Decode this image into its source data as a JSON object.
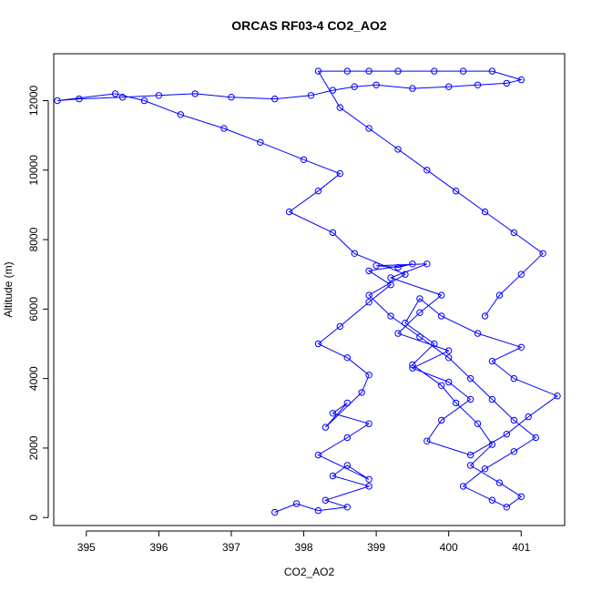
{
  "chart_data": {
    "type": "scatter",
    "title": "ORCAS RF03-4 CO2_AO2",
    "xlabel": "CO2_AO2",
    "ylabel": "Altitude (m)",
    "xlim": [
      394.55,
      401.6
    ],
    "ylim": [
      -230,
      13350
    ],
    "x_ticks": [
      395,
      396,
      397,
      398,
      399,
      400,
      401
    ],
    "y_ticks": [
      0,
      2000,
      4000,
      6000,
      8000,
      10000,
      12000
    ],
    "grid": false,
    "legend": "none",
    "connect_points": true,
    "marker": "open-circle",
    "color": "#0000ff",
    "series": [
      {
        "x": [
          397.6,
          397.9,
          398.2,
          398.6,
          398.3,
          398.9,
          398.4,
          398.6,
          398.9,
          398.2,
          398.6,
          398.9,
          398.4,
          398.6,
          398.3,
          398.8,
          398.9,
          398.6,
          398.2,
          398.5,
          398.9,
          399.2,
          398.9,
          399.5,
          399.3,
          399.0,
          399.7,
          399.2,
          399.9,
          399.6,
          399.3,
          400.0,
          399.5,
          400.0,
          400.3,
          399.9,
          399.7,
          400.3,
          400.8,
          401.1,
          401.5,
          400.9,
          400.6,
          401.0,
          400.4,
          399.9,
          399.6,
          399.4,
          399.8,
          399.5,
          399.9,
          400.1,
          400.4,
          400.6,
          400.3,
          400.7,
          401.0,
          400.8,
          400.6,
          400.2,
          400.5,
          400.9,
          401.2,
          400.9,
          400.6,
          400.3,
          400.0,
          399.6,
          399.2,
          398.9,
          399.4,
          398.7,
          398.4,
          397.8,
          398.2,
          398.5,
          398.0,
          397.4,
          396.9,
          396.3,
          395.8,
          395.4,
          394.6,
          394.9,
          395.5,
          396.0,
          396.5,
          397.0,
          397.6,
          398.1,
          398.4,
          398.7,
          399.0,
          399.5,
          400.0,
          400.4,
          400.8,
          401.0,
          400.6,
          400.2,
          399.8,
          399.3,
          398.9,
          398.6,
          398.2,
          398.5,
          398.9,
          399.3,
          399.7,
          400.1,
          400.5,
          400.9,
          401.3,
          401.0,
          400.7,
          400.5
        ],
        "y": [
          150,
          400,
          200,
          300,
          500,
          900,
          1200,
          1500,
          1100,
          1800,
          2300,
          2700,
          3000,
          3300,
          2600,
          3600,
          4100,
          4600,
          5000,
          5500,
          6200,
          6700,
          7100,
          7300,
          7200,
          7250,
          7300,
          6900,
          6400,
          5900,
          5300,
          4800,
          4300,
          3900,
          3400,
          2800,
          2200,
          1800,
          2400,
          2900,
          3500,
          4000,
          4500,
          4900,
          5300,
          5800,
          6300,
          5600,
          5000,
          4400,
          3800,
          3300,
          2700,
          2100,
          1500,
          1000,
          600,
          300,
          500,
          900,
          1400,
          1900,
          2300,
          2800,
          3400,
          4000,
          4600,
          5200,
          5800,
          6400,
          7000,
          7600,
          8200,
          8800,
          9400,
          9900,
          10300,
          10800,
          11200,
          11600,
          12000,
          12200,
          12000,
          12050,
          12100,
          12150,
          12200,
          12100,
          12050,
          12150,
          12300,
          12400,
          12450,
          12350,
          12400,
          12450,
          12500,
          12600,
          12850,
          12850,
          12850,
          12850,
          12850,
          12850,
          12850,
          11800,
          11200,
          10600,
          10000,
          9400,
          8800,
          8200,
          7600,
          7000,
          6400,
          5800
        ]
      }
    ]
  }
}
